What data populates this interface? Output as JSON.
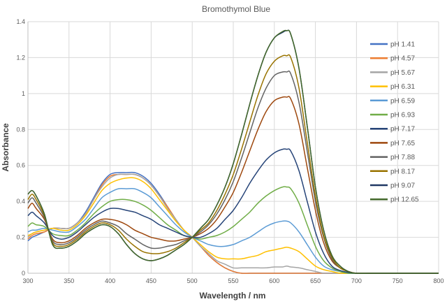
{
  "chart_data": {
    "type": "line",
    "title": "Bromothymol Blue",
    "xlabel": "Wavelength / nm",
    "ylabel": "Absorbance",
    "xlim": [
      300,
      800
    ],
    "ylim": [
      0,
      1.4
    ],
    "xticks": [
      300,
      350,
      400,
      450,
      500,
      550,
      600,
      650,
      700,
      750,
      800
    ],
    "yticks": [
      0,
      0.2,
      0.4,
      0.6,
      0.8,
      1,
      1.2,
      1.4
    ],
    "xtick_labels": [
      "300",
      "350",
      "400",
      "450",
      "500",
      "550",
      "600",
      "650",
      "700",
      "750",
      "800"
    ],
    "ytick_labels": [
      "0",
      "0.2",
      "0.4",
      "0.6",
      "0.8",
      "1",
      "1.2",
      "1.4"
    ],
    "grid": true,
    "legend_position": "right",
    "x": [
      300,
      305,
      310,
      320,
      330,
      340,
      350,
      360,
      370,
      380,
      390,
      400,
      410,
      420,
      430,
      440,
      450,
      460,
      470,
      480,
      490,
      500,
      510,
      520,
      530,
      540,
      550,
      560,
      570,
      580,
      590,
      600,
      610,
      615,
      620,
      630,
      640,
      650,
      660,
      670,
      680,
      690,
      700,
      720,
      750,
      800
    ],
    "series": [
      {
        "name": "pH  1.41",
        "color": "#4472c4",
        "values": [
          0.18,
          0.2,
          0.21,
          0.23,
          0.25,
          0.25,
          0.25,
          0.28,
          0.34,
          0.42,
          0.5,
          0.55,
          0.56,
          0.56,
          0.56,
          0.54,
          0.5,
          0.44,
          0.37,
          0.3,
          0.24,
          0.2,
          0.15,
          0.1,
          0.06,
          0.03,
          0.01,
          0.0,
          0.0,
          0.0,
          0.0,
          0.0,
          0.0,
          0.0,
          0.0,
          0.0,
          0.0,
          0.0,
          0.0,
          0.0,
          0.0,
          0.0,
          0.0,
          0.0,
          0.0,
          0.0
        ]
      },
      {
        "name": "pH  4.57",
        "color": "#ed7d31",
        "values": [
          0.19,
          0.21,
          0.22,
          0.23,
          0.25,
          0.25,
          0.25,
          0.28,
          0.33,
          0.41,
          0.49,
          0.54,
          0.55,
          0.55,
          0.55,
          0.53,
          0.49,
          0.43,
          0.37,
          0.3,
          0.24,
          0.2,
          0.15,
          0.1,
          0.06,
          0.03,
          0.01,
          0.0,
          0.0,
          0.0,
          0.0,
          0.0,
          0.0,
          0.0,
          0.0,
          0.0,
          0.0,
          0.0,
          0.0,
          0.0,
          0.0,
          0.0,
          0.0,
          0.0,
          0.0,
          0.0
        ]
      },
      {
        "name": "pH  5.67",
        "color": "#a5a5a5",
        "values": [
          0.2,
          0.22,
          0.23,
          0.24,
          0.25,
          0.25,
          0.25,
          0.28,
          0.33,
          0.41,
          0.48,
          0.53,
          0.55,
          0.55,
          0.55,
          0.53,
          0.49,
          0.43,
          0.36,
          0.3,
          0.24,
          0.2,
          0.15,
          0.11,
          0.07,
          0.05,
          0.03,
          0.03,
          0.03,
          0.03,
          0.03,
          0.035,
          0.035,
          0.04,
          0.035,
          0.03,
          0.02,
          0.01,
          0.0,
          0.0,
          0.0,
          0.0,
          0.0,
          0.0,
          0.0,
          0.0
        ]
      },
      {
        "name": "pH  6.31",
        "color": "#ffc000",
        "values": [
          0.21,
          0.22,
          0.23,
          0.24,
          0.25,
          0.24,
          0.24,
          0.27,
          0.32,
          0.39,
          0.46,
          0.5,
          0.52,
          0.53,
          0.53,
          0.51,
          0.47,
          0.41,
          0.35,
          0.29,
          0.24,
          0.2,
          0.16,
          0.12,
          0.09,
          0.08,
          0.08,
          0.08,
          0.09,
          0.1,
          0.12,
          0.13,
          0.14,
          0.145,
          0.14,
          0.12,
          0.08,
          0.04,
          0.02,
          0.01,
          0.0,
          0.0,
          0.0,
          0.0,
          0.0,
          0.0
        ]
      },
      {
        "name": "pH  6.59",
        "color": "#5b9bd5",
        "values": [
          0.23,
          0.24,
          0.24,
          0.25,
          0.24,
          0.23,
          0.23,
          0.26,
          0.3,
          0.36,
          0.42,
          0.45,
          0.47,
          0.47,
          0.47,
          0.45,
          0.42,
          0.37,
          0.32,
          0.27,
          0.23,
          0.2,
          0.18,
          0.16,
          0.15,
          0.15,
          0.16,
          0.18,
          0.2,
          0.23,
          0.26,
          0.28,
          0.29,
          0.29,
          0.28,
          0.23,
          0.16,
          0.09,
          0.04,
          0.02,
          0.01,
          0.0,
          0.0,
          0.0,
          0.0,
          0.0
        ]
      },
      {
        "name": "pH  6.93",
        "color": "#70ad47",
        "values": [
          0.26,
          0.28,
          0.27,
          0.26,
          0.22,
          0.21,
          0.21,
          0.24,
          0.28,
          0.33,
          0.37,
          0.4,
          0.41,
          0.41,
          0.4,
          0.38,
          0.35,
          0.31,
          0.27,
          0.24,
          0.21,
          0.2,
          0.19,
          0.2,
          0.21,
          0.23,
          0.26,
          0.3,
          0.34,
          0.39,
          0.43,
          0.46,
          0.48,
          0.48,
          0.47,
          0.39,
          0.27,
          0.15,
          0.07,
          0.03,
          0.01,
          0.0,
          0.0,
          0.0,
          0.0,
          0.0
        ]
      },
      {
        "name": "pH  7.17",
        "color": "#264478",
        "values": [
          0.32,
          0.34,
          0.32,
          0.28,
          0.21,
          0.19,
          0.2,
          0.23,
          0.27,
          0.31,
          0.34,
          0.36,
          0.36,
          0.35,
          0.34,
          0.32,
          0.3,
          0.27,
          0.25,
          0.23,
          0.21,
          0.2,
          0.2,
          0.22,
          0.25,
          0.3,
          0.35,
          0.42,
          0.5,
          0.57,
          0.63,
          0.67,
          0.69,
          0.69,
          0.68,
          0.57,
          0.4,
          0.23,
          0.11,
          0.04,
          0.015,
          0.005,
          0.0,
          0.0,
          0.0,
          0.0
        ]
      },
      {
        "name": "pH  7.65",
        "color": "#9e480e",
        "values": [
          0.36,
          0.39,
          0.36,
          0.3,
          0.19,
          0.17,
          0.18,
          0.21,
          0.25,
          0.28,
          0.3,
          0.3,
          0.29,
          0.27,
          0.24,
          0.22,
          0.2,
          0.19,
          0.18,
          0.18,
          0.19,
          0.2,
          0.22,
          0.25,
          0.3,
          0.37,
          0.45,
          0.56,
          0.68,
          0.8,
          0.9,
          0.96,
          0.98,
          0.98,
          0.97,
          0.83,
          0.59,
          0.35,
          0.17,
          0.07,
          0.03,
          0.01,
          0.0,
          0.0,
          0.0,
          0.0
        ]
      },
      {
        "name": "pH  7.88",
        "color": "#636363",
        "values": [
          0.39,
          0.42,
          0.39,
          0.31,
          0.18,
          0.16,
          0.17,
          0.2,
          0.24,
          0.27,
          0.29,
          0.28,
          0.26,
          0.22,
          0.19,
          0.16,
          0.14,
          0.14,
          0.15,
          0.16,
          0.18,
          0.2,
          0.23,
          0.27,
          0.33,
          0.41,
          0.51,
          0.64,
          0.78,
          0.92,
          1.03,
          1.1,
          1.12,
          1.12,
          1.11,
          0.95,
          0.68,
          0.4,
          0.2,
          0.08,
          0.03,
          0.01,
          0.0,
          0.0,
          0.0,
          0.0
        ]
      },
      {
        "name": "pH  8.17",
        "color": "#997300",
        "values": [
          0.41,
          0.44,
          0.41,
          0.32,
          0.17,
          0.15,
          0.16,
          0.19,
          0.23,
          0.26,
          0.28,
          0.27,
          0.24,
          0.19,
          0.15,
          0.12,
          0.11,
          0.11,
          0.12,
          0.14,
          0.17,
          0.2,
          0.24,
          0.28,
          0.35,
          0.44,
          0.55,
          0.69,
          0.84,
          0.99,
          1.11,
          1.18,
          1.21,
          1.21,
          1.2,
          1.03,
          0.73,
          0.43,
          0.21,
          0.09,
          0.03,
          0.01,
          0.0,
          0.0,
          0.0,
          0.0
        ]
      },
      {
        "name": "pH  9.07",
        "color": "#203864",
        "values": [
          0.44,
          0.46,
          0.43,
          0.33,
          0.16,
          0.14,
          0.15,
          0.18,
          0.22,
          0.25,
          0.27,
          0.26,
          0.22,
          0.16,
          0.11,
          0.08,
          0.07,
          0.08,
          0.1,
          0.13,
          0.16,
          0.2,
          0.25,
          0.3,
          0.38,
          0.48,
          0.61,
          0.77,
          0.94,
          1.1,
          1.23,
          1.31,
          1.34,
          1.35,
          1.33,
          1.14,
          0.82,
          0.48,
          0.24,
          0.1,
          0.04,
          0.01,
          0.0,
          0.0,
          0.0,
          0.0
        ]
      },
      {
        "name": "pH  12.65",
        "color": "#43682b",
        "values": [
          0.44,
          0.46,
          0.43,
          0.33,
          0.16,
          0.14,
          0.15,
          0.18,
          0.22,
          0.25,
          0.27,
          0.26,
          0.22,
          0.16,
          0.11,
          0.08,
          0.07,
          0.08,
          0.1,
          0.13,
          0.16,
          0.2,
          0.25,
          0.3,
          0.38,
          0.48,
          0.61,
          0.77,
          0.94,
          1.1,
          1.23,
          1.31,
          1.345,
          1.35,
          1.33,
          1.14,
          0.82,
          0.48,
          0.24,
          0.1,
          0.04,
          0.01,
          0.0,
          0.0,
          0.0,
          0.0
        ]
      }
    ]
  }
}
